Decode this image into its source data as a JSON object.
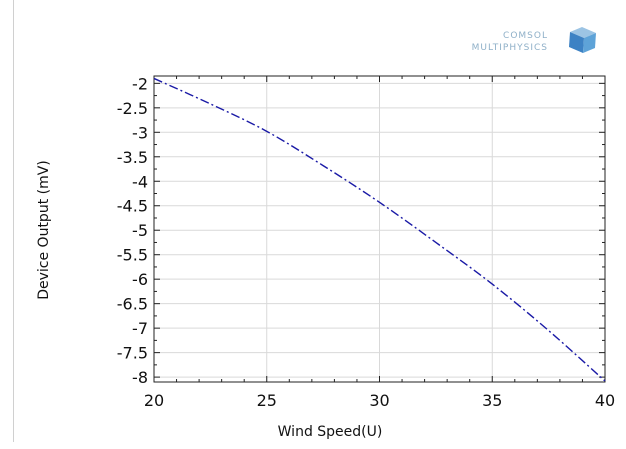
{
  "chart_data": {
    "type": "line",
    "title": "",
    "xlabel": "Wind Speed(U)",
    "ylabel": "Device Output (mV)",
    "xlim": [
      20,
      40
    ],
    "ylim": [
      -8.1,
      -1.85
    ],
    "xticks": [
      20,
      25,
      30,
      35,
      40
    ],
    "yticks": [
      -2,
      -2.5,
      -3,
      -3.5,
      -4,
      -4.5,
      -5,
      -5.5,
      -6,
      -6.5,
      -7,
      -7.5,
      -8
    ],
    "grid": true,
    "legend": "none",
    "series": [
      {
        "color": "#1a1aa6",
        "line_style": "dash-dot",
        "x": [
          20,
          22.5,
          25,
          27.5,
          30,
          32.5,
          35,
          37.5,
          40
        ],
        "y": [
          -1.9,
          -2.42,
          -2.98,
          -3.68,
          -4.43,
          -5.25,
          -6.1,
          -7.05,
          -8.08
        ]
      }
    ]
  },
  "logo": {
    "line1": "COMSOL",
    "line2": "MULTIPHYSICS",
    "icon": "comsol-cube-icon"
  }
}
